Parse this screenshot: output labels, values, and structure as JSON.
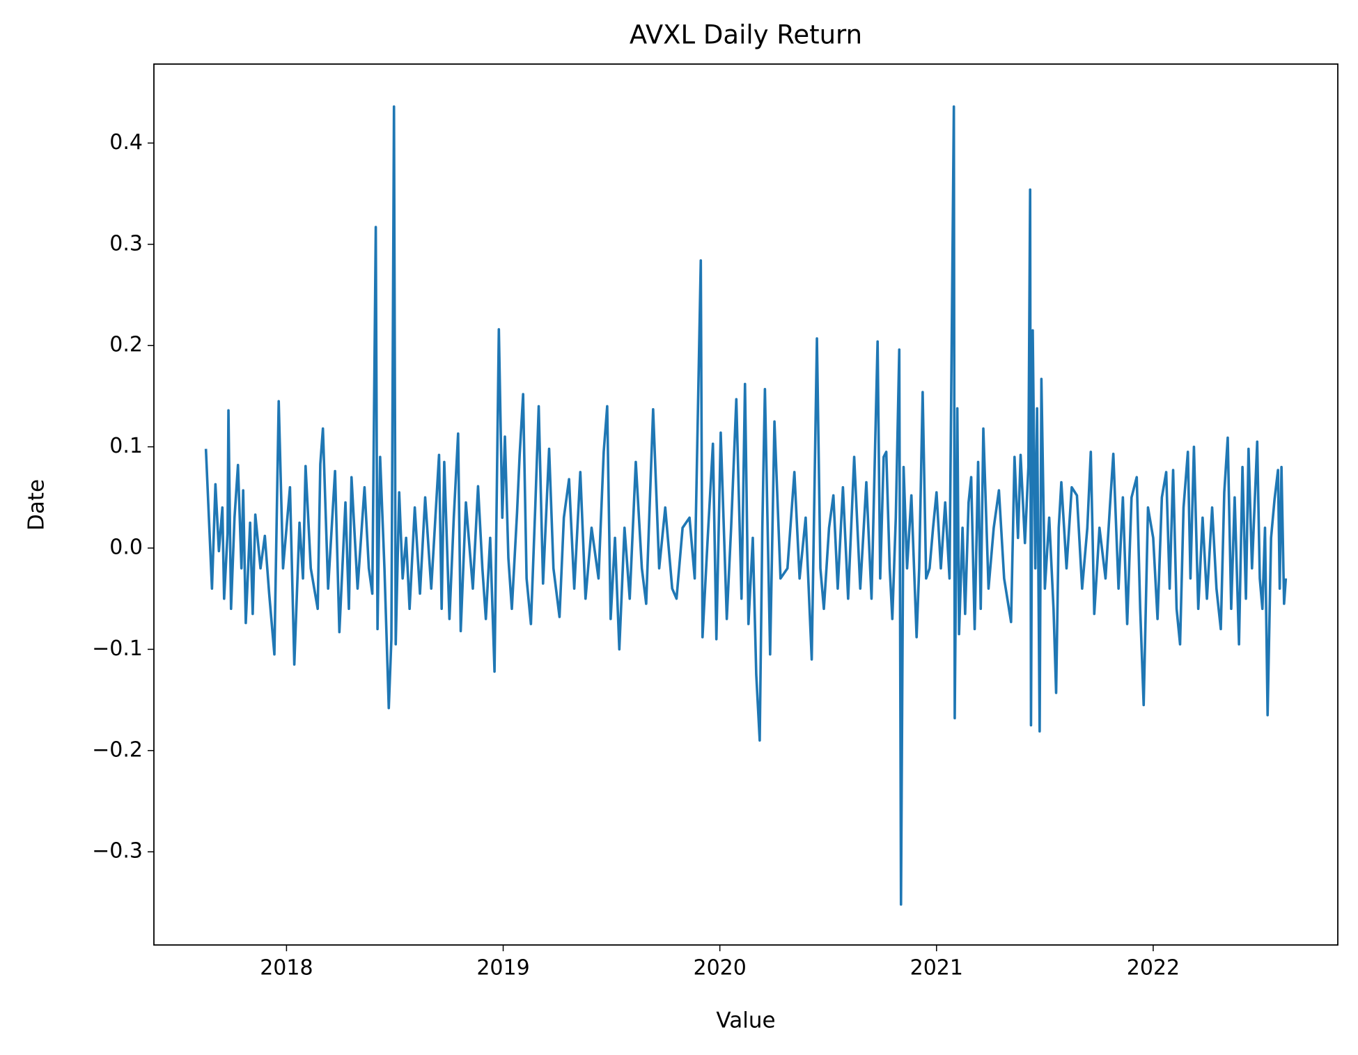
{
  "chart_data": {
    "type": "line",
    "title": "AVXL Daily Return",
    "x_label": "Value",
    "y_label": "Date",
    "color": "#1f77b4",
    "grid": false,
    "xlim": [
      2017.388,
      2022.852
    ],
    "ylim": [
      -0.392,
      0.478
    ],
    "xticks": [
      2018,
      2019,
      2020,
      2021,
      2022
    ],
    "yticks": [
      {
        "value": -0.3,
        "label": "−0.3"
      },
      {
        "value": -0.2,
        "label": "−0.2"
      },
      {
        "value": -0.1,
        "label": "−0.1"
      },
      {
        "value": 0,
        "label": "0.0"
      },
      0.1,
      0.2,
      0.3,
      0.4
    ],
    "x": [
      2017.628,
      2017.656,
      2017.672,
      2017.688,
      2017.704,
      2017.712,
      2017.728,
      2017.732,
      2017.744,
      2017.76,
      2017.776,
      2017.792,
      2017.8,
      2017.812,
      2017.832,
      2017.844,
      2017.856,
      2017.88,
      2017.9,
      2017.92,
      2017.944,
      2017.964,
      2017.984,
      2018.016,
      2018.036,
      2018.06,
      2018.076,
      2018.088,
      2018.112,
      2018.144,
      2018.156,
      2018.168,
      2018.192,
      2018.224,
      2018.244,
      2018.272,
      2018.288,
      2018.3,
      2018.328,
      2018.36,
      2018.38,
      2018.396,
      2018.412,
      2018.42,
      2018.432,
      2018.452,
      2018.472,
      2018.484,
      2018.496,
      2018.504,
      2018.52,
      2018.536,
      2018.552,
      2018.568,
      2018.592,
      2018.616,
      2018.64,
      2018.668,
      2018.704,
      2018.716,
      2018.728,
      2018.752,
      2018.772,
      2018.792,
      2018.804,
      2018.828,
      2018.86,
      2018.884,
      2018.904,
      2018.92,
      2018.94,
      2018.96,
      2018.98,
      2018.996,
      2019.008,
      2019.024,
      2019.04,
      2019.064,
      2019.076,
      2019.092,
      2019.108,
      2019.128,
      2019.148,
      2019.164,
      2019.184,
      2019.212,
      2019.232,
      2019.26,
      2019.28,
      2019.304,
      2019.328,
      2019.356,
      2019.38,
      2019.408,
      2019.44,
      2019.464,
      2019.48,
      2019.496,
      2019.516,
      2019.536,
      2019.56,
      2019.584,
      2019.612,
      2019.64,
      2019.66,
      2019.692,
      2019.72,
      2019.748,
      2019.78,
      2019.8,
      2019.828,
      2019.86,
      2019.884,
      2019.912,
      2019.92,
      2019.944,
      2019.968,
      2019.984,
      2020.004,
      2020.032,
      2020.052,
      2020.076,
      2020.1,
      2020.116,
      2020.132,
      2020.152,
      2020.168,
      2020.184,
      2020.196,
      2020.208,
      2020.232,
      2020.252,
      2020.28,
      2020.312,
      2020.344,
      2020.368,
      2020.396,
      2020.424,
      2020.448,
      2020.464,
      2020.48,
      2020.504,
      2020.524,
      2020.544,
      2020.568,
      2020.592,
      2020.62,
      2020.648,
      2020.676,
      2020.7,
      2020.728,
      2020.74,
      2020.756,
      2020.768,
      2020.784,
      2020.796,
      2020.812,
      2020.828,
      2020.836,
      2020.848,
      2020.864,
      2020.884,
      2020.908,
      2020.92,
      2020.936,
      2020.952,
      2020.968,
      2020.984,
      2021.0,
      2021.02,
      2021.04,
      2021.06,
      2021.08,
      2021.084,
      2021.096,
      2021.104,
      2021.12,
      2021.132,
      2021.148,
      2021.16,
      2021.176,
      2021.192,
      2021.204,
      2021.216,
      2021.24,
      2021.264,
      2021.288,
      2021.312,
      2021.344,
      2021.36,
      2021.376,
      2021.388,
      2021.408,
      2021.424,
      2021.432,
      2021.436,
      2021.444,
      2021.456,
      2021.464,
      2021.476,
      2021.484,
      2021.5,
      2021.52,
      2021.54,
      2021.552,
      2021.564,
      2021.576,
      2021.6,
      2021.624,
      2021.648,
      2021.672,
      2021.696,
      2021.712,
      2021.728,
      2021.752,
      2021.78,
      2021.8,
      2021.816,
      2021.84,
      2021.86,
      2021.88,
      2021.9,
      2021.924,
      2021.94,
      2021.956,
      2021.976,
      2022.0,
      2022.02,
      2022.04,
      2022.06,
      2022.076,
      2022.092,
      2022.108,
      2022.124,
      2022.14,
      2022.16,
      2022.172,
      2022.188,
      2022.208,
      2022.228,
      2022.248,
      2022.272,
      2022.292,
      2022.312,
      2022.328,
      2022.344,
      2022.36,
      2022.376,
      2022.396,
      2022.412,
      2022.428,
      2022.44,
      2022.456,
      2022.48,
      2022.492,
      2022.504,
      2022.516,
      2022.528,
      2022.544,
      2022.56,
      2022.576,
      2022.584,
      2022.592,
      2022.604,
      2022.612
    ],
    "values": [
      0.098,
      -0.04,
      0.063,
      -0.003,
      0.04,
      -0.05,
      0.015,
      0.136,
      -0.06,
      0.03,
      0.082,
      -0.02,
      0.057,
      -0.074,
      0.025,
      -0.065,
      0.033,
      -0.02,
      0.012,
      -0.045,
      -0.105,
      0.145,
      -0.02,
      0.06,
      -0.115,
      0.025,
      -0.03,
      0.081,
      -0.02,
      -0.06,
      0.083,
      0.118,
      -0.04,
      0.076,
      -0.083,
      0.045,
      -0.06,
      0.07,
      -0.04,
      0.06,
      -0.02,
      -0.045,
      0.317,
      -0.08,
      0.09,
      -0.02,
      -0.158,
      -0.09,
      0.436,
      -0.095,
      0.055,
      -0.03,
      0.01,
      -0.06,
      0.04,
      -0.045,
      0.05,
      -0.04,
      0.092,
      -0.06,
      0.085,
      -0.07,
      0.03,
      0.113,
      -0.082,
      0.045,
      -0.04,
      0.061,
      -0.02,
      -0.07,
      0.01,
      -0.122,
      0.216,
      0.03,
      0.11,
      -0.01,
      -0.06,
      0.035,
      0.092,
      0.152,
      -0.03,
      -0.075,
      0.04,
      0.14,
      -0.035,
      0.098,
      -0.02,
      -0.068,
      0.03,
      0.068,
      -0.04,
      0.075,
      -0.05,
      0.02,
      -0.03,
      0.095,
      0.14,
      -0.07,
      0.01,
      -0.1,
      0.02,
      -0.05,
      0.085,
      -0.02,
      -0.055,
      0.137,
      -0.02,
      0.04,
      -0.04,
      -0.05,
      0.02,
      0.03,
      -0.03,
      0.284,
      -0.088,
      0.01,
      0.103,
      -0.09,
      0.114,
      -0.07,
      0.02,
      0.147,
      -0.05,
      0.162,
      -0.075,
      0.01,
      -0.125,
      -0.19,
      0.02,
      0.157,
      -0.105,
      0.125,
      -0.03,
      -0.02,
      0.075,
      -0.03,
      0.03,
      -0.11,
      0.207,
      -0.02,
      -0.06,
      0.02,
      0.052,
      -0.04,
      0.06,
      -0.05,
      0.09,
      -0.04,
      0.065,
      -0.05,
      0.204,
      -0.03,
      0.09,
      0.095,
      -0.02,
      -0.07,
      0.03,
      0.196,
      -0.352,
      0.08,
      -0.02,
      0.052,
      -0.088,
      -0.02,
      0.154,
      -0.03,
      -0.02,
      0.02,
      0.055,
      -0.02,
      0.045,
      -0.03,
      0.436,
      -0.168,
      0.138,
      -0.085,
      0.02,
      -0.065,
      0.045,
      0.07,
      -0.08,
      0.085,
      -0.06,
      0.118,
      -0.04,
      0.02,
      0.057,
      -0.03,
      -0.073,
      0.09,
      0.01,
      0.092,
      0.005,
      0.08,
      0.354,
      -0.175,
      0.215,
      -0.02,
      0.138,
      -0.181,
      0.167,
      -0.04,
      0.03,
      -0.06,
      -0.143,
      0.02,
      0.065,
      -0.02,
      0.06,
      0.052,
      -0.04,
      0.02,
      0.095,
      -0.065,
      0.02,
      -0.03,
      0.04,
      0.093,
      -0.04,
      0.05,
      -0.075,
      0.05,
      0.07,
      -0.06,
      -0.155,
      0.04,
      0.01,
      -0.07,
      0.05,
      0.075,
      -0.04,
      0.077,
      -0.06,
      -0.095,
      0.04,
      0.095,
      -0.03,
      0.1,
      -0.06,
      0.03,
      -0.05,
      0.04,
      -0.04,
      -0.08,
      0.055,
      0.109,
      -0.06,
      0.05,
      -0.095,
      0.08,
      -0.05,
      0.098,
      -0.02,
      0.105,
      -0.03,
      -0.06,
      0.02,
      -0.165,
      0.01,
      0.048,
      0.077,
      -0.04,
      0.08,
      -0.055,
      -0.03
    ]
  }
}
